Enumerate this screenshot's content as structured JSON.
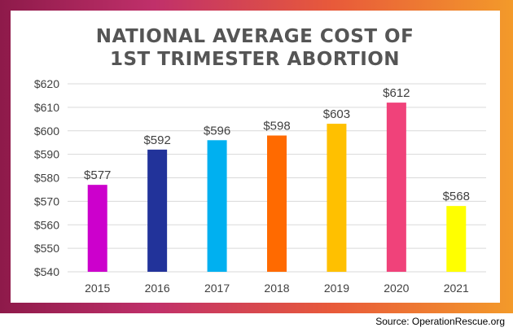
{
  "source": "Source: OperationRescue.org",
  "chart_data": {
    "type": "bar",
    "title_lines": [
      "NATIONAL AVERAGE COST OF",
      "1ST TRIMESTER ABORTION"
    ],
    "categories": [
      "2015",
      "2016",
      "2017",
      "2018",
      "2019",
      "2020",
      "2021"
    ],
    "values": [
      577,
      592,
      596,
      598,
      603,
      612,
      568
    ],
    "data_labels": [
      "$577",
      "$592",
      "$596",
      "$598",
      "$603",
      "$612",
      "$568"
    ],
    "bar_colors": [
      "#cc00cc",
      "#22339a",
      "#00b0f0",
      "#ff6a00",
      "#ffc000",
      "#f0427a",
      "#ffff00"
    ],
    "ylim": [
      540,
      620
    ],
    "yticks": [
      540,
      550,
      560,
      570,
      580,
      590,
      600,
      610,
      620
    ],
    "ytick_labels": [
      "$540",
      "$550",
      "$560",
      "$570",
      "$580",
      "$590",
      "$600",
      "$610",
      "$620"
    ],
    "grid": true,
    "xlabel": "",
    "ylabel": ""
  }
}
